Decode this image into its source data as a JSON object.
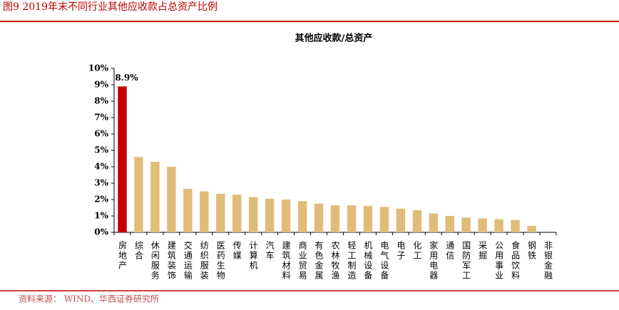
{
  "figure_title": "图9 2019年末不同行业其他应收款占总资产比例",
  "source": "资料来源： WIND、华西证券研究所",
  "chart_data": {
    "type": "bar",
    "title": "其他应收款/总资产",
    "categories": [
      "房地产",
      "综合",
      "休闲服务",
      "建筑装饰",
      "交通运输",
      "纺织服装",
      "医药生物",
      "传媒",
      "计算机",
      "汽车",
      "建筑材料",
      "商业贸易",
      "有色金属",
      "农林牧渔",
      "轻工制造",
      "机械设备",
      "电气设备",
      "电子",
      "化工",
      "家用电器",
      "通信",
      "国防军工",
      "采掘",
      "公用事业",
      "食品饮料",
      "钢铁",
      "非银金融"
    ],
    "values": [
      8.9,
      4.6,
      4.3,
      4.0,
      2.65,
      2.5,
      2.35,
      2.3,
      2.15,
      2.05,
      2.0,
      1.9,
      1.75,
      1.65,
      1.65,
      1.6,
      1.55,
      1.45,
      1.35,
      1.15,
      1.0,
      0.9,
      0.85,
      0.8,
      0.75,
      0.4,
      0
    ],
    "value_labels": [
      "8.9%",
      null,
      null,
      null,
      null,
      null,
      null,
      null,
      null,
      null,
      null,
      null,
      null,
      null,
      null,
      null,
      null,
      null,
      null,
      null,
      null,
      null,
      null,
      null,
      null,
      null,
      null
    ],
    "colors": [
      "#c00000",
      "#dfbd78",
      "#dfbd78",
      "#dfbd78",
      "#dfbd78",
      "#dfbd78",
      "#dfbd78",
      "#dfbd78",
      "#dfbd78",
      "#dfbd78",
      "#dfbd78",
      "#dfbd78",
      "#dfbd78",
      "#dfbd78",
      "#dfbd78",
      "#dfbd78",
      "#dfbd78",
      "#dfbd78",
      "#dfbd78",
      "#dfbd78",
      "#dfbd78",
      "#dfbd78",
      "#dfbd78",
      "#dfbd78",
      "#dfbd78",
      "#dfbd78",
      "#dfbd78"
    ],
    "ylim": [
      0,
      10
    ],
    "yticks": [
      {
        "value": 0,
        "label": "0%"
      },
      {
        "value": 1,
        "label": "1%"
      },
      {
        "value": 2,
        "label": "2%"
      },
      {
        "value": 3,
        "label": "3%"
      },
      {
        "value": 4,
        "label": "4%"
      },
      {
        "value": 5,
        "label": "5%"
      },
      {
        "value": 6,
        "label": "6%"
      },
      {
        "value": 7,
        "label": "7%"
      },
      {
        "value": 8,
        "label": "8%"
      },
      {
        "value": 9,
        "label": "9%"
      },
      {
        "value": 10,
        "label": "10%"
      }
    ],
    "grid": false
  }
}
